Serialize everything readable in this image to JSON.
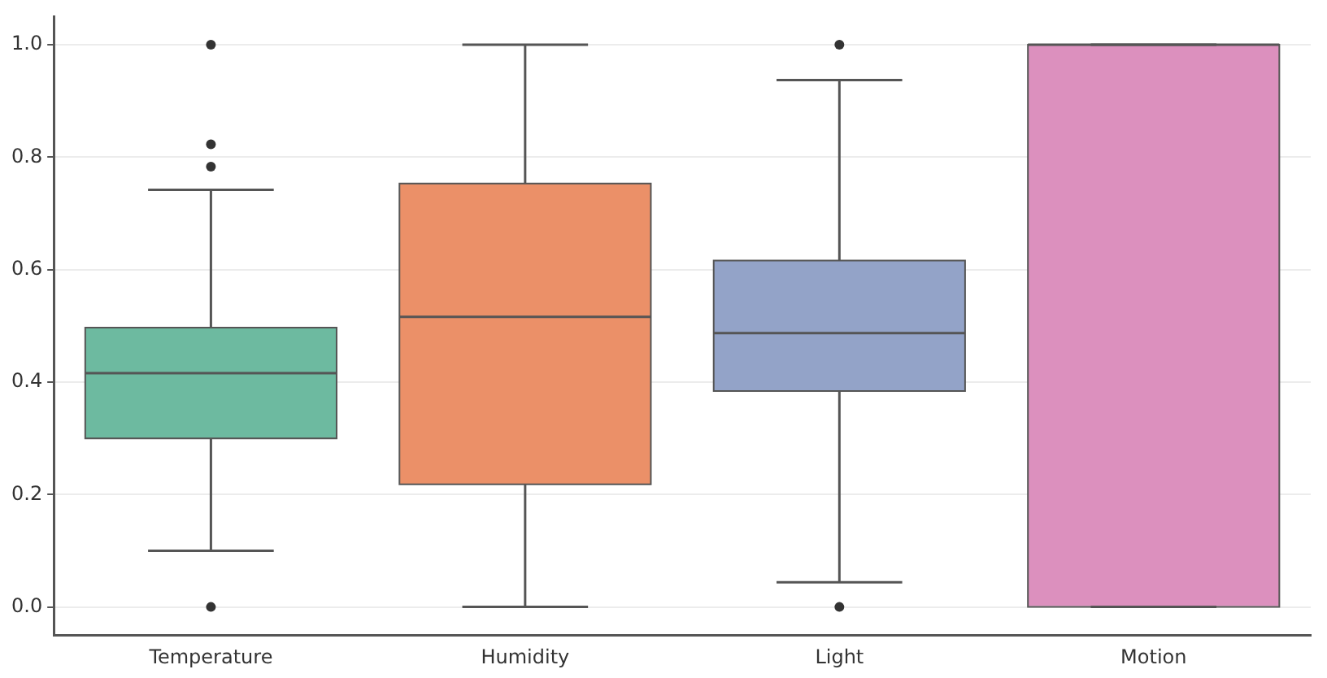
{
  "chart_data": {
    "type": "box",
    "categories": [
      "Temperature",
      "Humidity",
      "Light",
      "Motion"
    ],
    "colors": [
      "#6dbaa0",
      "#eb9068",
      "#93a3c8",
      "#dc90be"
    ],
    "boxes": [
      {
        "low": 0.1,
        "q1": 0.3,
        "median": 0.416,
        "q3": 0.497,
        "high": 0.742,
        "outliers": [
          0,
          0.783,
          0.823,
          1
        ]
      },
      {
        "low": 0,
        "q1": 0.218,
        "median": 0.516,
        "q3": 0.753,
        "high": 1
      },
      {
        "low": 0.044,
        "q1": 0.384,
        "median": 0.487,
        "q3": 0.616,
        "high": 0.937,
        "outliers": [
          0,
          1
        ]
      },
      {
        "low": 0,
        "q1": 0,
        "median": 1,
        "q3": 1,
        "high": 1
      }
    ],
    "ylim": [
      -0.05,
      1.05
    ],
    "yticks": [
      {
        "value": 0,
        "label": "0.0"
      },
      {
        "value": 0.2,
        "label": "0.2"
      },
      {
        "value": 0.4,
        "label": "0.4"
      },
      {
        "value": 0.6,
        "label": "0.6"
      },
      {
        "value": 0.8,
        "label": "0.8"
      },
      {
        "value": 1,
        "label": "1.0"
      }
    ],
    "grid": "y"
  }
}
